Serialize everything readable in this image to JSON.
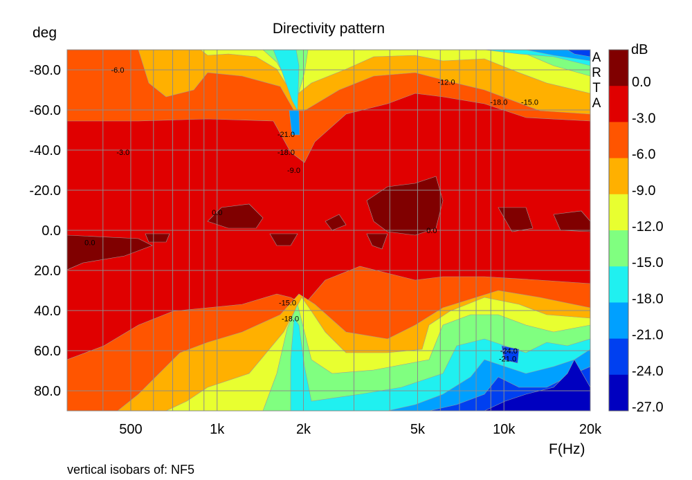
{
  "chart_data": {
    "type": "heatmap",
    "title": "Directivity pattern",
    "xlabel": "F(Hz)",
    "ylabel": "deg",
    "x_scale": "log",
    "xlim": [
      300,
      20000
    ],
    "ylim": [
      -90,
      90
    ],
    "x_ticks": [
      {
        "value": 500,
        "label": "500"
      },
      {
        "value": 1000,
        "label": "1k"
      },
      {
        "value": 2000,
        "label": "2k"
      },
      {
        "value": 5000,
        "label": "5k"
      },
      {
        "value": 10000,
        "label": "10k"
      },
      {
        "value": 20000,
        "label": "20k"
      }
    ],
    "y_ticks": [
      {
        "value": -80,
        "label": "-80.0"
      },
      {
        "value": -60,
        "label": "-60.0"
      },
      {
        "value": -40,
        "label": "-40.0"
      },
      {
        "value": -20,
        "label": "-20.0"
      },
      {
        "value": 0,
        "label": "0.0"
      },
      {
        "value": 20,
        "label": "20.0"
      },
      {
        "value": 40,
        "label": "40.0"
      },
      {
        "value": 60,
        "label": "60.0"
      },
      {
        "value": 80,
        "label": "80.0"
      }
    ],
    "grid": true,
    "colorbar": {
      "unit": "dB",
      "placement": "right",
      "levels": [
        "0.0",
        "-3.0",
        "-6.0",
        "-9.0",
        "-12.0",
        "-15.0",
        "-18.0",
        "-21.0",
        "-24.0",
        "-27.0"
      ],
      "colors": [
        "#800000",
        "#e00000",
        "#ff5500",
        "#ffb000",
        "#e8ff30",
        "#80ff80",
        "#20f0f0",
        "#00a0ff",
        "#0040f0",
        "#0000c0"
      ]
    },
    "isobar_labels": [
      {
        "text": "-6.0",
        "freq": 450,
        "deg": -80
      },
      {
        "text": "-3.0",
        "freq": 470,
        "deg": -39
      },
      {
        "text": "0.0",
        "freq": 360,
        "deg": 6
      },
      {
        "text": "0.0",
        "freq": 1000,
        "deg": -9
      },
      {
        "text": "-21.0",
        "freq": 1740,
        "deg": -48
      },
      {
        "text": "-18.0",
        "freq": 1740,
        "deg": -39
      },
      {
        "text": "-9.0",
        "freq": 1850,
        "deg": -30
      },
      {
        "text": "-12.0",
        "freq": 6300,
        "deg": -74
      },
      {
        "text": "-18.0",
        "freq": 9600,
        "deg": -64
      },
      {
        "text": "-15.0",
        "freq": 12300,
        "deg": -64
      },
      {
        "text": "0.0",
        "freq": 5600,
        "deg": 0
      },
      {
        "text": "-15.0",
        "freq": 1760,
        "deg": 36
      },
      {
        "text": "-18.0",
        "freq": 1800,
        "deg": 44
      },
      {
        "text": "-24.0",
        "freq": 10400,
        "deg": 60
      },
      {
        "text": "-21.0",
        "freq": 10300,
        "deg": 64
      }
    ]
  },
  "watermark": "ARTA",
  "caption": "vertical isobars of: NF5"
}
